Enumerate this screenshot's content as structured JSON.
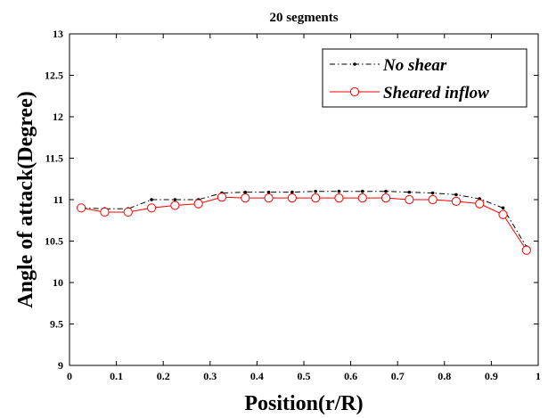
{
  "chart_data": {
    "type": "line",
    "title": "20 segments",
    "xlabel": "Position(r/R)",
    "ylabel": "Angle of attack(Degree)",
    "xlim": [
      0,
      1
    ],
    "ylim": [
      9,
      13
    ],
    "xticks": [
      0,
      0.1,
      0.2,
      0.3,
      0.4,
      0.5,
      0.6,
      0.7,
      0.8,
      0.9,
      1
    ],
    "xtick_labels": [
      "0",
      "0.1",
      "0.2",
      "0.3",
      "0.4",
      "0.5",
      "0.6",
      "0.7",
      "0.8",
      "0.9",
      "1"
    ],
    "yticks": [
      9,
      9.5,
      10,
      10.5,
      11,
      11.5,
      12,
      12.5,
      13
    ],
    "ytick_labels": [
      "9",
      "9.5",
      "10",
      "10.5",
      "11",
      "11.5",
      "12",
      "12.5",
      "13"
    ],
    "grid": false,
    "legend_position": "top-right",
    "x": [
      0.025,
      0.075,
      0.125,
      0.175,
      0.225,
      0.275,
      0.325,
      0.375,
      0.425,
      0.475,
      0.525,
      0.575,
      0.625,
      0.675,
      0.725,
      0.775,
      0.825,
      0.875,
      0.925,
      0.975
    ],
    "series": [
      {
        "name": "No shear",
        "color": "#000000",
        "line_style": "dash-dot",
        "marker": "dot",
        "values": [
          10.9,
          10.89,
          10.89,
          11.0,
          11.0,
          11.0,
          11.08,
          11.09,
          11.09,
          11.09,
          11.1,
          11.1,
          11.1,
          11.1,
          11.09,
          11.08,
          11.06,
          11.01,
          10.9,
          10.43
        ]
      },
      {
        "name": "Sheared inflow",
        "color": "#ff0000",
        "line_style": "solid",
        "marker": "open-circle",
        "values": [
          10.9,
          10.85,
          10.85,
          10.9,
          10.93,
          10.95,
          11.03,
          11.02,
          11.02,
          11.02,
          11.02,
          11.02,
          11.02,
          11.02,
          11.0,
          11.0,
          10.98,
          10.95,
          10.82,
          10.39
        ]
      }
    ]
  }
}
